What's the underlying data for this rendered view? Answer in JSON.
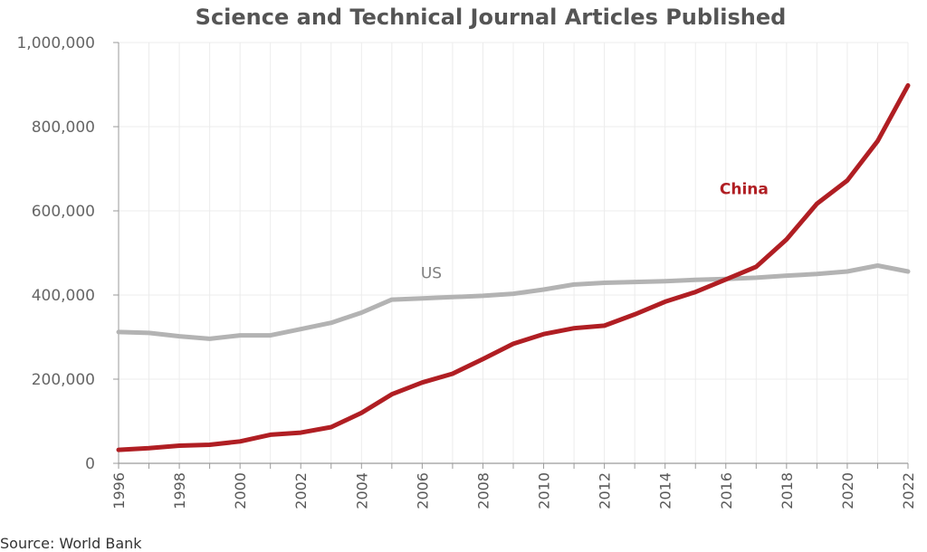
{
  "chart_data": {
    "type": "line",
    "title": "Science and Technical Journal Articles Published",
    "xlabel": "",
    "ylabel": "",
    "source": "Source: World Bank",
    "x": [
      1996,
      1997,
      1998,
      1999,
      2000,
      2001,
      2002,
      2003,
      2004,
      2005,
      2006,
      2007,
      2008,
      2009,
      2010,
      2011,
      2012,
      2013,
      2014,
      2015,
      2016,
      2017,
      2018,
      2019,
      2020,
      2021,
      2022
    ],
    "xticks": [
      "1996",
      "1998",
      "2000",
      "2002",
      "2004",
      "2006",
      "2008",
      "2010",
      "2012",
      "2014",
      "2016",
      "2018",
      "2020",
      "2022"
    ],
    "xlim": [
      1996,
      2022
    ],
    "yticks": [
      "0",
      "200,000",
      "400,000",
      "600,000",
      "800,000",
      "1,000,000"
    ],
    "ylim": [
      0,
      1000000
    ],
    "grid": true,
    "series": [
      {
        "name": "US",
        "color": "#b3b3b3",
        "label_text": "US",
        "label_color": "#808080",
        "label_anchor": [
          2006.3,
          440000
        ],
        "values": [
          312000,
          310000,
          302000,
          296000,
          304000,
          304000,
          319000,
          334000,
          358000,
          389000,
          392000,
          395000,
          398000,
          403000,
          413000,
          425000,
          429000,
          431000,
          433000,
          436000,
          438000,
          441000,
          446000,
          450000,
          456000,
          470000,
          456000
        ]
      },
      {
        "name": "China",
        "color": "#b01e23",
        "label_text": "China",
        "label_color": "#b01e23",
        "label_anchor": [
          2016.6,
          640000
        ],
        "values": [
          32000,
          36000,
          42000,
          44000,
          52000,
          68000,
          73000,
          86000,
          120000,
          164000,
          192000,
          213000,
          248000,
          284000,
          307000,
          321000,
          327000,
          354000,
          384000,
          407000,
          437000,
          467000,
          532000,
          617000,
          672000,
          766000,
          898000
        ]
      }
    ]
  }
}
